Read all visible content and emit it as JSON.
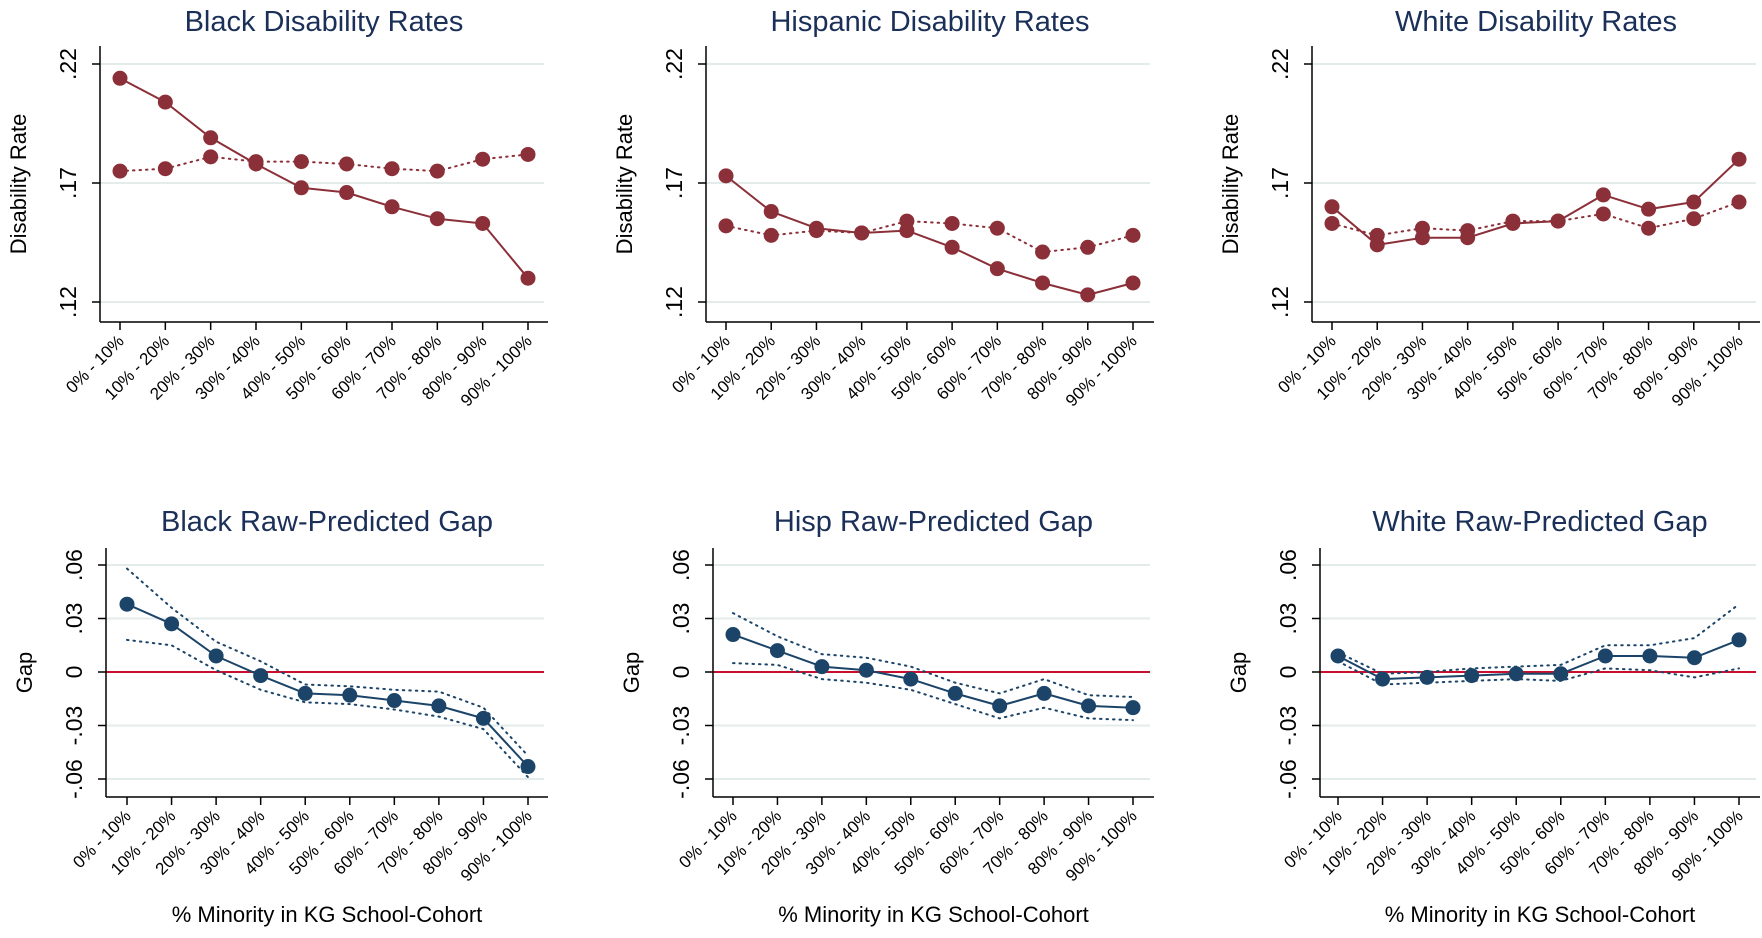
{
  "colors": {
    "rate": "#8b2f38",
    "gap": "#1b4468",
    "zero_line": "#c8102e",
    "grid": "#e3ecea",
    "title": "#1b3058",
    "axis": "#000000"
  },
  "chart_data": [
    {
      "type": "line",
      "title": "Black Disability Rates",
      "xlabel": "",
      "ylabel": "Disability Rate",
      "categories": [
        "0% - 10%",
        "10% - 20%",
        "20% - 30%",
        "30% - 40%",
        "40% - 50%",
        "50% - 60%",
        "60% - 70%",
        "70% - 80%",
        "80% - 90%",
        "90% - 100%"
      ],
      "yticks": [
        0.12,
        0.17,
        0.22
      ],
      "ytick_labels": [
        ".12",
        ".17",
        ".22"
      ],
      "ylim": [
        0.112,
        0.229
      ],
      "grid": true,
      "series": [
        {
          "style": "solid",
          "values": [
            0.214,
            0.204,
            0.189,
            0.178,
            0.168,
            0.166,
            0.16,
            0.155,
            0.153,
            0.13
          ]
        },
        {
          "style": "dotted",
          "values": [
            0.175,
            0.176,
            0.181,
            0.179,
            0.179,
            0.178,
            0.176,
            0.175,
            0.18,
            0.182
          ]
        }
      ]
    },
    {
      "type": "line",
      "title": "Hispanic Disability Rates",
      "xlabel": "",
      "ylabel": "Disability Rate",
      "categories": [
        "0% - 10%",
        "10% - 20%",
        "20% - 30%",
        "30% - 40%",
        "40% - 50%",
        "50% - 60%",
        "60% - 70%",
        "70% - 80%",
        "80% - 90%",
        "90% - 100%"
      ],
      "yticks": [
        0.12,
        0.17,
        0.22
      ],
      "ytick_labels": [
        ".12",
        ".17",
        ".22"
      ],
      "ylim": [
        0.112,
        0.229
      ],
      "grid": true,
      "series": [
        {
          "style": "solid",
          "values": [
            0.173,
            0.158,
            0.151,
            0.149,
            0.15,
            0.143,
            0.134,
            0.128,
            0.123,
            0.128
          ]
        },
        {
          "style": "dotted",
          "values": [
            0.152,
            0.148,
            0.15,
            0.149,
            0.154,
            0.153,
            0.151,
            0.141,
            0.143,
            0.148
          ]
        }
      ]
    },
    {
      "type": "line",
      "title": "White Disability Rates",
      "xlabel": "",
      "ylabel": "Disability Rate",
      "categories": [
        "0% - 10%",
        "10% - 20%",
        "20% - 30%",
        "30% - 40%",
        "40% - 50%",
        "50% - 60%",
        "60% - 70%",
        "70% - 80%",
        "80% - 90%",
        "90% - 100%"
      ],
      "yticks": [
        0.12,
        0.17,
        0.22
      ],
      "ytick_labels": [
        ".12",
        ".17",
        ".22"
      ],
      "ylim": [
        0.112,
        0.229
      ],
      "grid": true,
      "series": [
        {
          "style": "solid",
          "values": [
            0.16,
            0.144,
            0.147,
            0.147,
            0.153,
            0.154,
            0.165,
            0.159,
            0.162,
            0.18
          ]
        },
        {
          "style": "dotted",
          "values": [
            0.153,
            0.148,
            0.151,
            0.15,
            0.154,
            0.154,
            0.157,
            0.151,
            0.155,
            0.162
          ]
        }
      ]
    },
    {
      "type": "line",
      "title": "Black Raw-Predicted Gap",
      "xlabel": "% Minority in KG School-Cohort",
      "ylabel": "Gap",
      "categories": [
        "0% - 10%",
        "10% - 20%",
        "20% - 30%",
        "30% - 40%",
        "40% - 50%",
        "50% - 60%",
        "60% - 70%",
        "70% - 80%",
        "80% - 90%",
        "90% - 100%"
      ],
      "yticks": [
        -0.06,
        -0.03,
        0,
        0.03,
        0.06
      ],
      "ytick_labels": [
        "-.06",
        "-.03",
        "0",
        ".03",
        ".06"
      ],
      "ylim": [
        -0.071,
        0.07
      ],
      "grid": true,
      "zero_line": true,
      "series": [
        {
          "style": "solid",
          "values": [
            0.038,
            0.027,
            0.009,
            -0.002,
            -0.012,
            -0.013,
            -0.016,
            -0.019,
            -0.026,
            -0.053
          ]
        },
        {
          "style": "dotted",
          "values": [
            0.058,
            0.036,
            0.017,
            0.006,
            -0.007,
            -0.008,
            -0.01,
            -0.011,
            -0.02,
            -0.047
          ]
        },
        {
          "style": "dotted",
          "values": [
            0.018,
            0.015,
            0.001,
            -0.01,
            -0.017,
            -0.018,
            -0.021,
            -0.025,
            -0.032,
            -0.059
          ]
        }
      ]
    },
    {
      "type": "line",
      "title": "Hisp Raw-Predicted Gap",
      "xlabel": "% Minority in KG School-Cohort",
      "ylabel": "Gap",
      "categories": [
        "0% - 10%",
        "10% - 20%",
        "20% - 30%",
        "30% - 40%",
        "40% - 50%",
        "50% - 60%",
        "60% - 70%",
        "70% - 80%",
        "80% - 90%",
        "90% - 100%"
      ],
      "yticks": [
        -0.06,
        -0.03,
        0,
        0.03,
        0.06
      ],
      "ytick_labels": [
        "-.06",
        "-.03",
        "0",
        ".03",
        ".06"
      ],
      "ylim": [
        -0.071,
        0.07
      ],
      "grid": true,
      "zero_line": true,
      "series": [
        {
          "style": "solid",
          "values": [
            0.021,
            0.012,
            0.003,
            0.001,
            -0.004,
            -0.012,
            -0.019,
            -0.012,
            -0.019,
            -0.02
          ]
        },
        {
          "style": "dotted",
          "values": [
            0.033,
            0.02,
            0.01,
            0.008,
            0.003,
            -0.006,
            -0.012,
            -0.004,
            -0.013,
            -0.014
          ]
        },
        {
          "style": "dotted",
          "values": [
            0.005,
            0.004,
            -0.004,
            -0.006,
            -0.01,
            -0.018,
            -0.026,
            -0.02,
            -0.026,
            -0.027
          ]
        }
      ]
    },
    {
      "type": "line",
      "title": "White Raw-Predicted Gap",
      "xlabel": "% Minority in KG School-Cohort",
      "ylabel": "Gap",
      "categories": [
        "0% - 10%",
        "10% - 20%",
        "20% - 30%",
        "30% - 40%",
        "40% - 50%",
        "50% - 60%",
        "60% - 70%",
        "70% - 80%",
        "80% - 90%",
        "90% - 100%"
      ],
      "yticks": [
        -0.06,
        -0.03,
        0,
        0.03,
        0.06
      ],
      "ytick_labels": [
        "-.06",
        "-.03",
        "0",
        ".03",
        ".06"
      ],
      "ylim": [
        -0.071,
        0.07
      ],
      "grid": true,
      "zero_line": true,
      "series": [
        {
          "style": "solid",
          "values": [
            0.009,
            -0.004,
            -0.003,
            -0.002,
            -0.001,
            -0.001,
            0.009,
            0.009,
            0.008,
            0.018
          ]
        },
        {
          "style": "dotted",
          "values": [
            0.011,
            -0.001,
            0.0,
            0.002,
            0.003,
            0.004,
            0.015,
            0.015,
            0.019,
            0.038
          ]
        },
        {
          "style": "dotted",
          "values": [
            0.006,
            -0.007,
            -0.006,
            -0.005,
            -0.004,
            -0.005,
            0.002,
            0.001,
            -0.003,
            0.002
          ]
        }
      ]
    }
  ]
}
